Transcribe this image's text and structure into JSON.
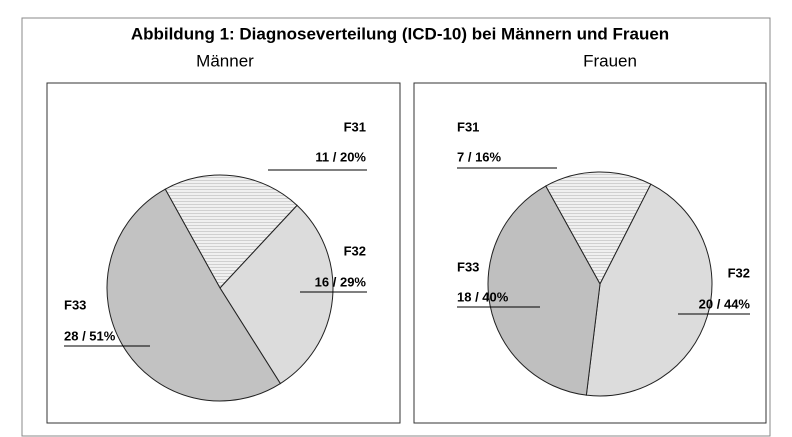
{
  "title": "Abbildung 1: Diagnoseverteilung (ICD-10) bei Männern und Frauen",
  "chart_data": [
    {
      "type": "pie",
      "title": "Männer",
      "categories": [
        "F31",
        "F32",
        "F33"
      ],
      "values": [
        11,
        16,
        28
      ],
      "value_labels": [
        "11 / 20%",
        "16 / 29%",
        "28 / 51%"
      ],
      "colors": [
        "#ececec",
        "#dcdcdc",
        "#c2c2c2"
      ],
      "startangle": -29
    },
    {
      "type": "pie",
      "title": "Frauen",
      "categories": [
        "F31",
        "F32",
        "F33"
      ],
      "values": [
        7,
        20,
        18
      ],
      "value_labels": [
        "7 / 16%",
        "20 / 44%",
        "18 / 40%"
      ],
      "colors": [
        "#ececec",
        "#dcdcdc",
        "#bfbfbf"
      ],
      "startangle": -29
    }
  ]
}
